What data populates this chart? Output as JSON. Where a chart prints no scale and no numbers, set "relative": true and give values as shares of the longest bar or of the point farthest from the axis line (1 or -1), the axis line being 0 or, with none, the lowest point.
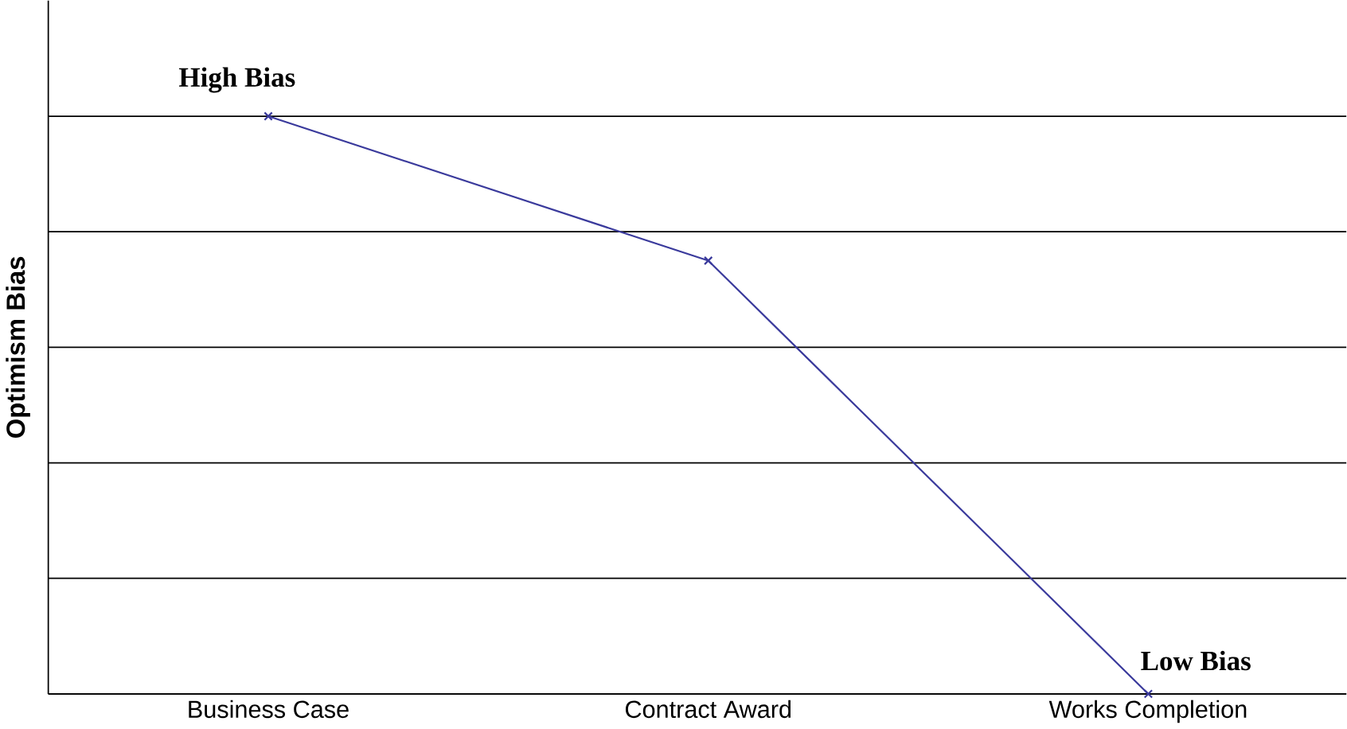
{
  "chart_data": {
    "type": "line",
    "ylabel": "Optimism Bias",
    "categories": [
      "Business Case",
      "Contract Award",
      "Works Completion"
    ],
    "series": [
      {
        "color": "#3a3a9c",
        "values": [
          1,
          0.75,
          0
        ]
      }
    ],
    "relative": true,
    "grid": "y",
    "marker": "cross",
    "annotations": [
      {
        "text": "High Bias",
        "x": "Business Case",
        "y": 1
      },
      {
        "text": "Low Bias",
        "x": "Works Completion",
        "y": 0
      }
    ]
  }
}
